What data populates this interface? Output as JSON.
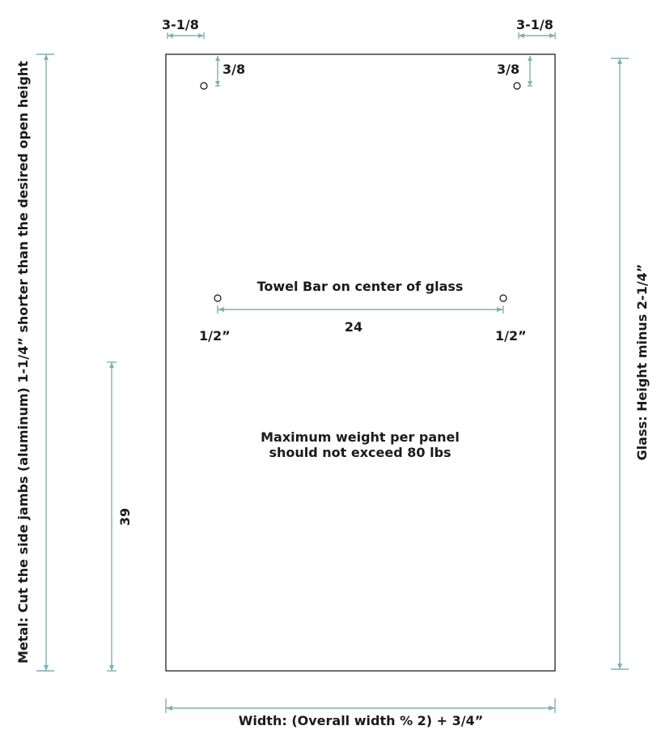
{
  "colors": {
    "dimension_line": "#7fb0b4",
    "outline": "#111111",
    "text": "#1a1a1a"
  },
  "top_left_offset": "3-1/8",
  "top_right_offset": "3-1/8",
  "top_left_hole_drop": "3/8",
  "top_right_hole_drop": "3/8",
  "towel_bar_title": "Towel Bar on center of glass",
  "towel_bar_spacing": "24",
  "towel_left_offset": "1/2”",
  "towel_right_offset": "1/2”",
  "weight_note_line1": "Maximum weight per panel",
  "weight_note_line2": "should not exceed 80 lbs",
  "handle_height": "39",
  "metal_note": "Metal: Cut the side jambs (aluminum) 1-1/4” shorter than the desired open height",
  "glass_note": "Glass: Height minus 2-1/4”",
  "width_note": "Width: (Overall width % 2) + 3/4”"
}
